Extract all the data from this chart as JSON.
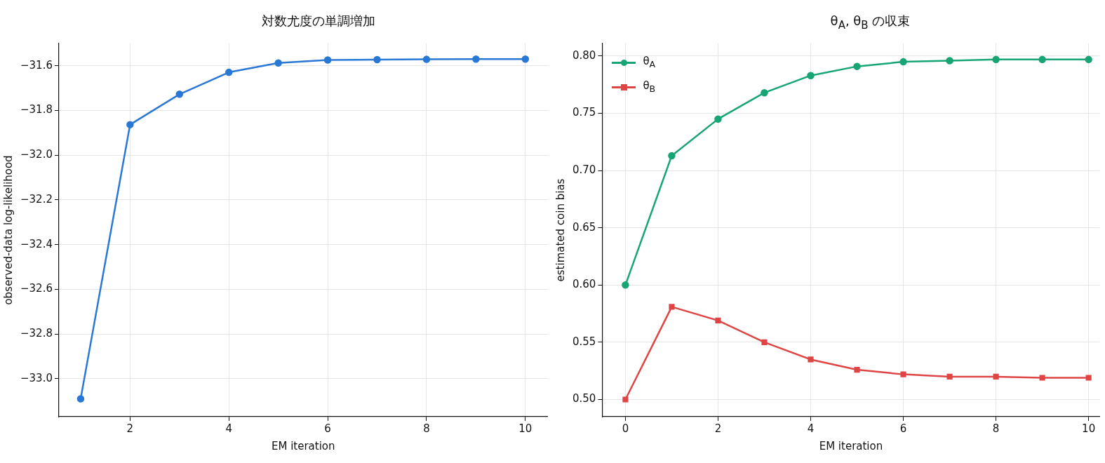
{
  "chart_data": [
    {
      "type": "line",
      "title": "対数尤度の単調増加",
      "xlabel": "EM iteration",
      "ylabel": "observed-data log-likelihood",
      "x": [
        1,
        2,
        3,
        4,
        5,
        6,
        7,
        8,
        9,
        10
      ],
      "series": [
        {
          "color": "#2a78d6",
          "values": [
            -33.09,
            -31.863,
            -31.727,
            -31.629,
            -31.587,
            -31.574,
            -31.572,
            -31.571,
            -31.57,
            -31.57
          ]
        }
      ],
      "xlim": [
        0.56,
        10.45
      ],
      "xticks": [
        2,
        4,
        6,
        8,
        10
      ],
      "ylim": [
        -33.17,
        -31.5
      ],
      "yticks": [
        {
          "value": -33.0,
          "label": "−33.0"
        },
        {
          "value": -32.8,
          "label": "−32.8"
        },
        {
          "value": -32.6,
          "label": "−32.6"
        },
        {
          "value": -32.4,
          "label": "−32.4"
        },
        {
          "value": -32.2,
          "label": "−32.2"
        },
        {
          "value": -32.0,
          "label": "−32.0"
        },
        {
          "value": -31.8,
          "label": "−31.8"
        },
        {
          "value": -31.6,
          "label": "−31.6"
        }
      ],
      "grid": true,
      "legend": false,
      "marker": "circle",
      "line_style": "solid"
    },
    {
      "type": "line",
      "title": "θ$_{A}$, θ$_{B}$ の収束",
      "xlabel": "EM iteration",
      "ylabel": "estimated coin bias",
      "x": [
        0,
        1,
        2,
        3,
        4,
        5,
        6,
        7,
        8,
        9,
        10
      ],
      "series": [
        {
          "name": "θ$_{A}$",
          "color": "#17a673",
          "marker": "circle",
          "values": [
            0.6,
            0.713,
            0.745,
            0.768,
            0.783,
            0.791,
            0.795,
            0.796,
            0.797,
            0.797,
            0.797
          ]
        },
        {
          "name": "θ$_{B}$",
          "color": "#e04545",
          "marker": "square",
          "values": [
            0.5,
            0.581,
            0.569,
            0.55,
            0.535,
            0.526,
            0.522,
            0.52,
            0.52,
            0.519,
            0.519
          ]
        }
      ],
      "xlim": [
        -0.5,
        10.24
      ],
      "xticks": [
        0,
        2,
        4,
        6,
        8,
        10
      ],
      "ylim": [
        0.485,
        0.811
      ],
      "yticks": [
        {
          "value": 0.5,
          "label": "0.50"
        },
        {
          "value": 0.55,
          "label": "0.55"
        },
        {
          "value": 0.6,
          "label": "0.60"
        },
        {
          "value": 0.65,
          "label": "0.65"
        },
        {
          "value": 0.7,
          "label": "0.70"
        },
        {
          "value": 0.75,
          "label": "0.75"
        },
        {
          "value": 0.8,
          "label": "0.80"
        }
      ],
      "grid": true,
      "legend": "top left",
      "line_style": "solid"
    }
  ]
}
